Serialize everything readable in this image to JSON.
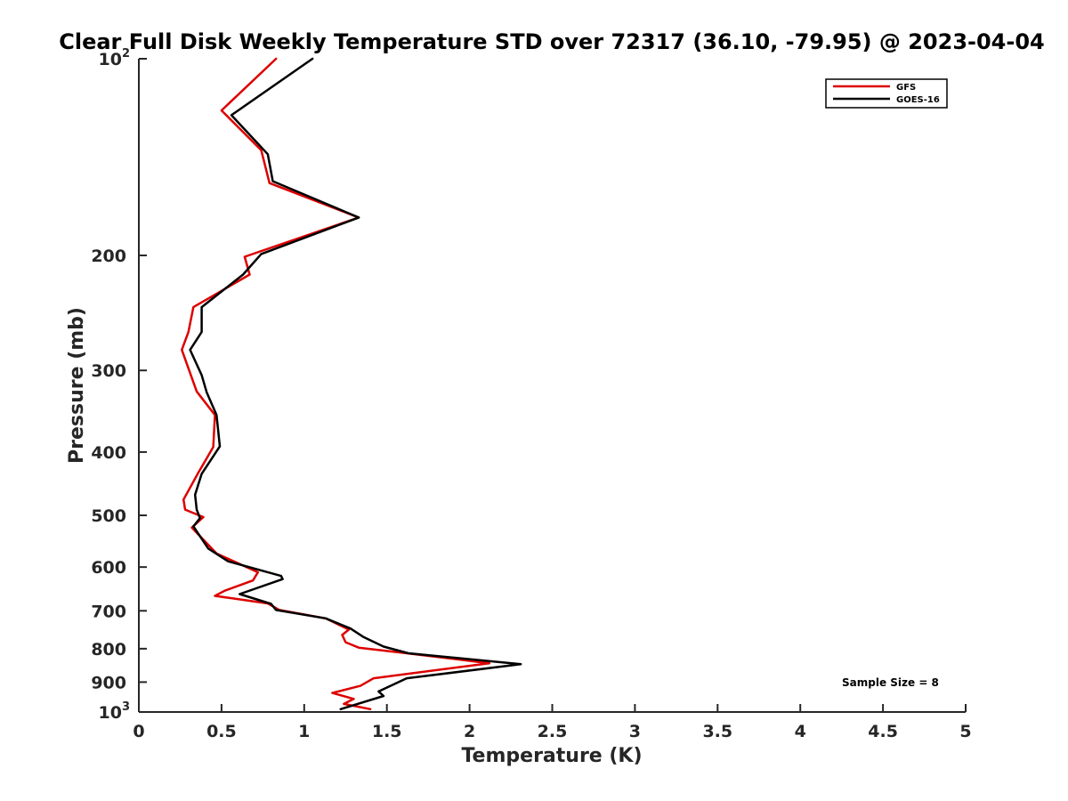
{
  "chart_data": {
    "type": "line",
    "title": "Clear Full Disk Weekly Temperature STD over 72317 (36.10, -79.95) @ 2023-04-04",
    "xlabel": "Temperature (K)",
    "ylabel": "Pressure (mb)",
    "xlim": [
      0,
      5
    ],
    "ylim": [
      100,
      1000
    ],
    "y_scale": "log",
    "y_reversed": true,
    "grid": false,
    "legend_position": "top-right",
    "x_ticks": [
      "0",
      "0.5",
      "1",
      "1.5",
      "2",
      "2.5",
      "3",
      "3.5",
      "4",
      "4.5",
      "5"
    ],
    "y_ticks": [
      {
        "value": 100,
        "label": "10",
        "sup": "2"
      },
      {
        "value": 200,
        "label": "200",
        "sup": ""
      },
      {
        "value": 300,
        "label": "300",
        "sup": ""
      },
      {
        "value": 400,
        "label": "400",
        "sup": ""
      },
      {
        "value": 500,
        "label": "500",
        "sup": ""
      },
      {
        "value": 600,
        "label": "600",
        "sup": ""
      },
      {
        "value": 700,
        "label": "700",
        "sup": ""
      },
      {
        "value": 800,
        "label": "800",
        "sup": ""
      },
      {
        "value": 900,
        "label": "900",
        "sup": ""
      },
      {
        "value": 1000,
        "label": "10",
        "sup": "3"
      }
    ],
    "annotation": "Sample Size = 8",
    "series": [
      {
        "name": "GFS",
        "color": "#dd0000",
        "points": [
          [
            0.83,
            100
          ],
          [
            0.5,
            120
          ],
          [
            0.74,
            138
          ],
          [
            0.79,
            155
          ],
          [
            1.33,
            175
          ],
          [
            0.64,
            201
          ],
          [
            0.67,
            214
          ],
          [
            0.33,
            240
          ],
          [
            0.3,
            262
          ],
          [
            0.26,
            279
          ],
          [
            0.35,
            323
          ],
          [
            0.46,
            351
          ],
          [
            0.45,
            393
          ],
          [
            0.36,
            430
          ],
          [
            0.27,
            473
          ],
          [
            0.28,
            490
          ],
          [
            0.39,
            503
          ],
          [
            0.32,
            522
          ],
          [
            0.47,
            572
          ],
          [
            0.72,
            611
          ],
          [
            0.69,
            629
          ],
          [
            0.52,
            652
          ],
          [
            0.46,
            664
          ],
          [
            0.78,
            682
          ],
          [
            0.85,
            698
          ],
          [
            1.13,
            719
          ],
          [
            1.27,
            748
          ],
          [
            1.23,
            762
          ],
          [
            1.25,
            782
          ],
          [
            1.33,
            797
          ],
          [
            1.62,
            813
          ],
          [
            2.12,
            842
          ],
          [
            1.42,
            888
          ],
          [
            1.34,
            912
          ],
          [
            1.17,
            935
          ],
          [
            1.3,
            955
          ],
          [
            1.24,
            972
          ],
          [
            1.4,
            990
          ]
        ]
      },
      {
        "name": "GOES-16",
        "color": "#000000",
        "points": [
          [
            1.05,
            100
          ],
          [
            0.56,
            122
          ],
          [
            0.78,
            140
          ],
          [
            0.81,
            154
          ],
          [
            1.33,
            175
          ],
          [
            0.74,
            199
          ],
          [
            0.63,
            214
          ],
          [
            0.38,
            240
          ],
          [
            0.38,
            262
          ],
          [
            0.31,
            279
          ],
          [
            0.38,
            305
          ],
          [
            0.41,
            324
          ],
          [
            0.47,
            351
          ],
          [
            0.49,
            392
          ],
          [
            0.38,
            432
          ],
          [
            0.34,
            465
          ],
          [
            0.35,
            490
          ],
          [
            0.37,
            505
          ],
          [
            0.33,
            520
          ],
          [
            0.42,
            562
          ],
          [
            0.54,
            588
          ],
          [
            0.86,
            619
          ],
          [
            0.87,
            626
          ],
          [
            0.61,
            660
          ],
          [
            0.8,
            683
          ],
          [
            0.83,
            698
          ],
          [
            1.13,
            719
          ],
          [
            1.28,
            745
          ],
          [
            1.36,
            768
          ],
          [
            1.48,
            794
          ],
          [
            1.63,
            813
          ],
          [
            2.31,
            845
          ],
          [
            1.62,
            888
          ],
          [
            1.45,
            930
          ],
          [
            1.48,
            945
          ],
          [
            1.22,
            990
          ]
        ]
      }
    ]
  }
}
